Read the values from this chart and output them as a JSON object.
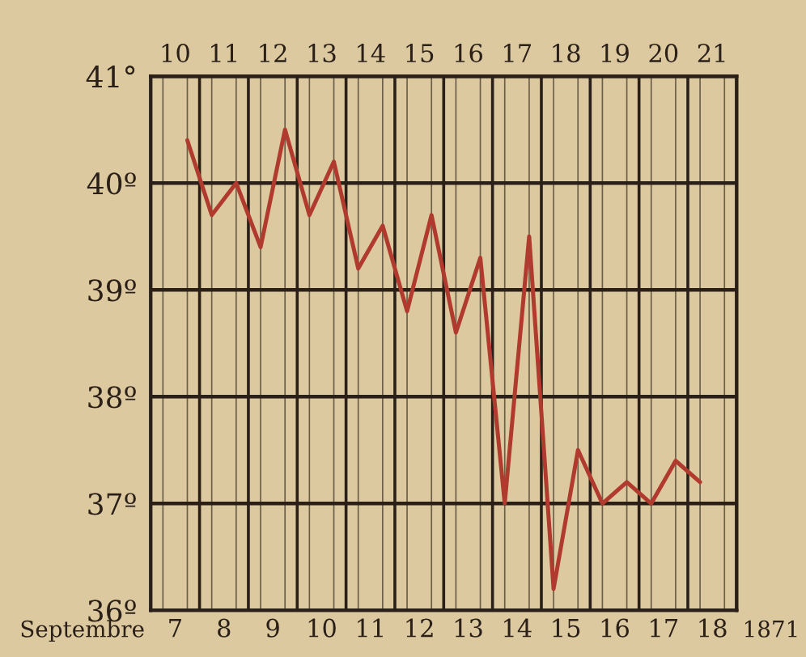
{
  "chart_data": {
    "type": "line",
    "x": [
      7.25,
      7.75,
      8.25,
      8.75,
      9.25,
      9.75,
      10.25,
      10.75,
      11.25,
      11.75,
      12.25,
      12.75,
      13.25,
      13.75,
      14.25,
      14.75,
      15.25,
      15.75,
      16.25,
      16.75,
      17.25,
      17.75
    ],
    "series": [
      {
        "color": "#b03a2e",
        "values": [
          40.4,
          39.7,
          40.0,
          39.4,
          40.5,
          39.7,
          40.2,
          39.2,
          39.6,
          38.8,
          39.7,
          38.6,
          39.3,
          37.0,
          39.5,
          36.2,
          37.5,
          37.0,
          37.2,
          37.0,
          37.4,
          37.2
        ]
      }
    ],
    "xlabel": "Septembre",
    "annotations": [
      "1871"
    ],
    "xlim": [
      6.5,
      18.5
    ],
    "xticks": [
      7,
      8,
      9,
      10,
      11,
      12,
      13,
      14,
      15,
      16,
      17,
      18
    ],
    "x2lim": [
      9.5,
      21.5
    ],
    "x2ticks": [
      10,
      11,
      12,
      13,
      14,
      15,
      16,
      17,
      18,
      19,
      20,
      21
    ],
    "ylim": [
      36,
      41
    ],
    "yticks": [
      {
        "value": 36,
        "label": "36º"
      },
      {
        "value": 37,
        "label": "37º"
      },
      {
        "value": 38,
        "label": "38º"
      },
      {
        "value": 39,
        "label": "39º"
      },
      {
        "value": 40,
        "label": "40º"
      },
      {
        "value": 41,
        "label": "41°"
      }
    ],
    "grid": true,
    "marker": "none",
    "line_style": "solid",
    "legend": false
  }
}
